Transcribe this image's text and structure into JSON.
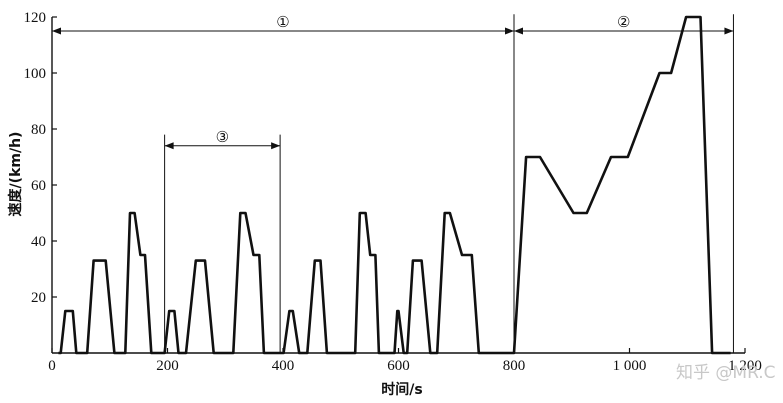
{
  "chart_data": {
    "type": "line",
    "title": "",
    "xlabel": "时间/s",
    "ylabel": "速度/(km/h)",
    "xlim": [
      0,
      1200
    ],
    "ylim": [
      0,
      120
    ],
    "x_ticks": [
      0,
      200,
      400,
      600,
      800,
      1000,
      1200
    ],
    "x_tick_labels": [
      "0",
      "200",
      "400",
      "600",
      "800",
      "1 000",
      "1 200"
    ],
    "y_ticks": [
      20,
      40,
      60,
      80,
      100,
      120
    ],
    "y_tick_labels": [
      "20",
      "40",
      "60",
      "80",
      "100",
      "120"
    ],
    "grid": false,
    "series": [
      {
        "x": [
          11,
          15,
          23,
          36,
          42,
          49,
          55,
          61,
          72,
          93,
          108,
          115,
          127,
          135,
          143,
          153,
          161,
          172,
          181,
          187,
          195,
          203,
          212,
          219,
          232,
          249,
          265,
          280,
          299,
          314,
          326,
          335,
          349,
          359,
          367,
          377,
          388,
          392,
          398,
          401,
          411,
          417,
          428,
          442,
          455,
          465,
          476,
          486,
          503,
          525,
          533,
          543,
          551,
          560,
          566,
          576,
          589,
          593,
          598,
          600,
          609,
          615,
          625,
          640,
          655,
          667,
          680,
          689,
          710,
          727,
          739,
          749,
          756,
          767,
          784,
          789,
          795,
          800,
          821,
          845,
          903,
          926,
          968,
          997,
          1052,
          1072,
          1098,
          1123,
          1143,
          1160,
          1175
        ],
        "y": [
          0,
          0,
          15,
          15,
          0,
          0,
          0,
          0,
          33,
          33,
          0,
          0,
          0,
          50,
          50,
          35,
          35,
          0,
          0,
          0,
          0,
          15,
          15,
          0,
          0,
          33,
          33,
          0,
          0,
          0,
          50,
          50,
          35,
          35,
          0,
          0,
          0,
          0,
          0,
          0,
          15,
          15,
          0,
          0,
          33,
          33,
          0,
          0,
          0,
          0,
          50,
          50,
          35,
          35,
          0,
          0,
          0,
          0,
          15,
          15,
          0,
          0,
          33,
          33,
          0,
          0,
          50,
          50,
          35,
          35,
          0,
          0,
          0,
          0,
          0,
          0,
          0,
          0,
          70,
          70,
          50,
          50,
          70,
          70,
          100,
          100,
          120,
          120,
          0,
          0,
          0
        ]
      }
    ],
    "annotations": [
      {
        "label": "①",
        "x_start": 0,
        "x_end": 800,
        "y": 115
      },
      {
        "label": "②",
        "x_start": 800,
        "x_end": 1180,
        "y": 115
      },
      {
        "label": "③",
        "x_start": 195,
        "x_end": 395,
        "y": 74
      }
    ]
  },
  "watermark": "知乎 @MR.C"
}
